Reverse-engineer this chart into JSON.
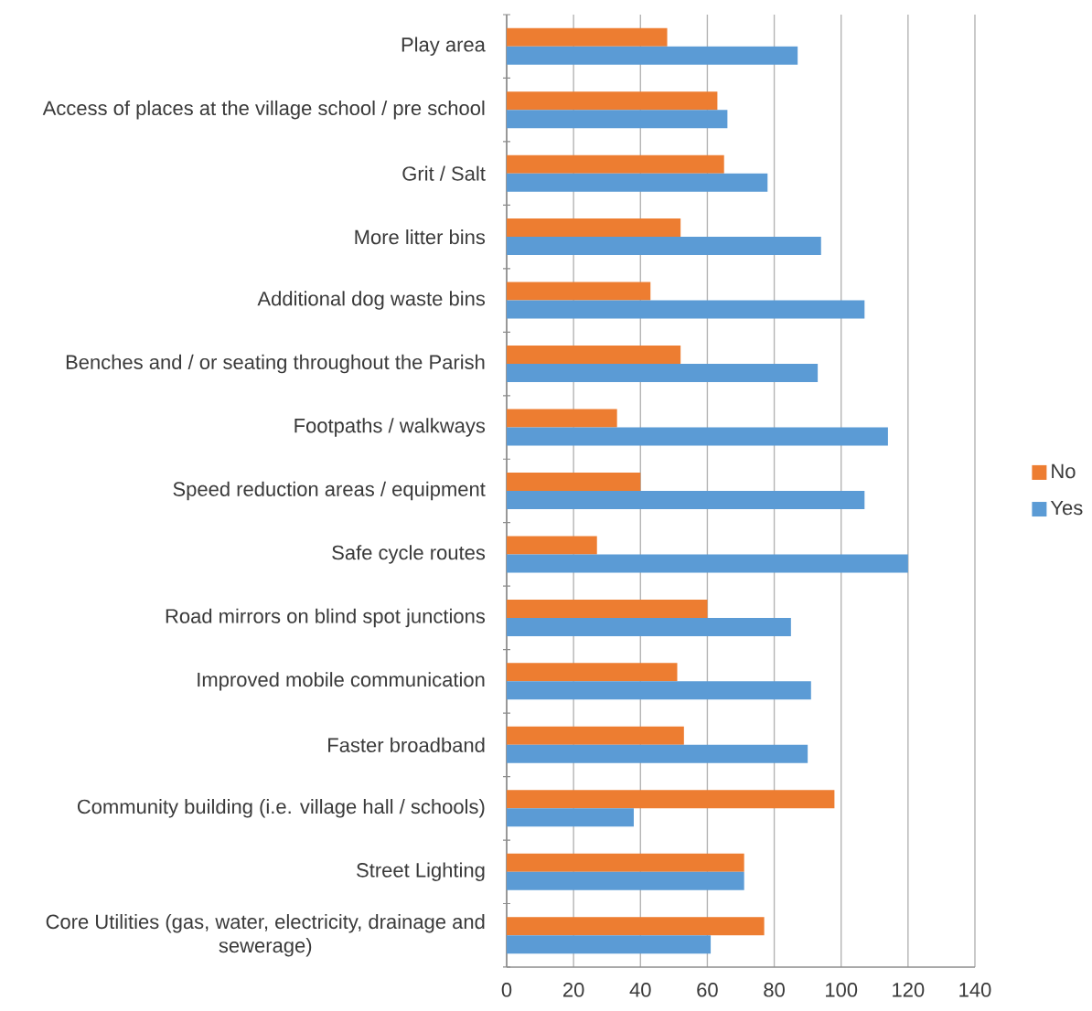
{
  "chart_data": {
    "type": "bar",
    "orientation": "horizontal",
    "categories": [
      "Play area",
      "Access of places at the village school / pre school",
      "Grit / Salt",
      "More litter bins",
      "Additional dog waste bins",
      "Benches and / or seating throughout the Parish",
      "Footpaths / walkways",
      "Speed reduction areas / equipment",
      "Safe cycle routes",
      "Road mirrors on blind spot junctions",
      "Improved mobile communication",
      "Faster broadband",
      "Community building (i.e. village hall / schools)",
      "Street Lighting",
      "Core Utilities (gas, water, electricity, drainage and sewerage)"
    ],
    "series": [
      {
        "name": "No",
        "color": "#ed7d31",
        "values": [
          48,
          63,
          65,
          52,
          43,
          52,
          33,
          40,
          27,
          60,
          51,
          53,
          98,
          71,
          77
        ]
      },
      {
        "name": "Yes",
        "color": "#5b9bd5",
        "values": [
          87,
          66,
          78,
          94,
          107,
          93,
          114,
          107,
          120,
          85,
          91,
          90,
          38,
          71,
          61
        ]
      }
    ],
    "xlim": [
      0,
      140
    ],
    "xticks": [
      0,
      20,
      40,
      60,
      80,
      100,
      120,
      140
    ],
    "grid": "x",
    "legend": "right"
  }
}
